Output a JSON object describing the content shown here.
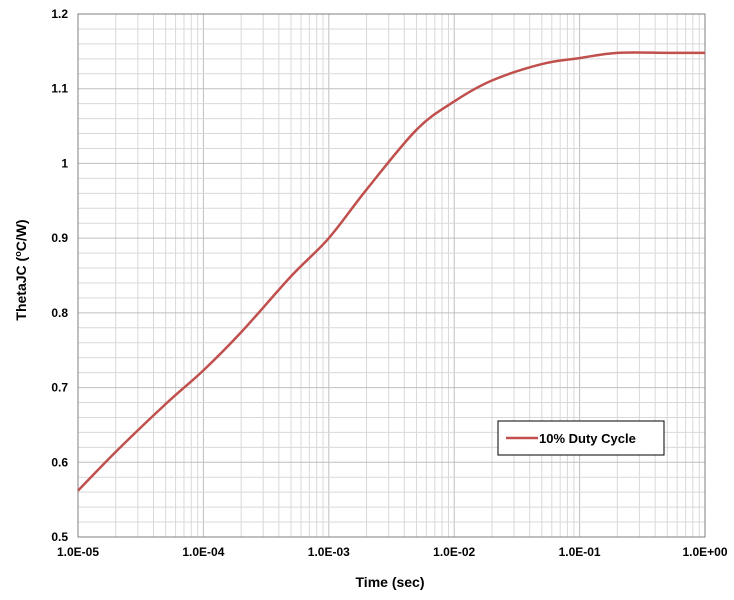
{
  "chart_data": {
    "type": "line",
    "xlabel": "Time (sec)",
    "ylabel_main": "ThetaJC (",
    "ylabel_sup": "o",
    "ylabel_rest": "C/W)",
    "xscale": "log",
    "xlim": [
      1e-05,
      1
    ],
    "ylim": [
      0.5,
      1.2
    ],
    "grid": true,
    "legend_position": "lower-right",
    "x_tick_labels": [
      "1.0E-05",
      "1.0E-04",
      "1.0E-03",
      "1.0E-02",
      "1.0E-01",
      "1.0E+00"
    ],
    "y_tick_labels": [
      "0.5",
      "0.6",
      "0.7",
      "0.8",
      "0.9",
      "1",
      "1.1",
      "1.2"
    ],
    "y_ticks": [
      0.5,
      0.6,
      0.7,
      0.8,
      0.9,
      1.0,
      1.1,
      1.2
    ],
    "series": [
      {
        "name": "10% Duty Cycle",
        "color": "#c0504d",
        "x": [
          1e-05,
          2e-05,
          5e-05,
          0.0001,
          0.0002,
          0.0005,
          0.001,
          0.002,
          0.005,
          0.01,
          0.02,
          0.05,
          0.1,
          0.2,
          0.5,
          1
        ],
        "y": [
          0.562,
          0.614,
          0.678,
          0.723,
          0.774,
          0.849,
          0.9,
          0.965,
          1.045,
          1.083,
          1.111,
          1.133,
          1.141,
          1.148,
          1.148,
          1.148
        ]
      }
    ]
  }
}
